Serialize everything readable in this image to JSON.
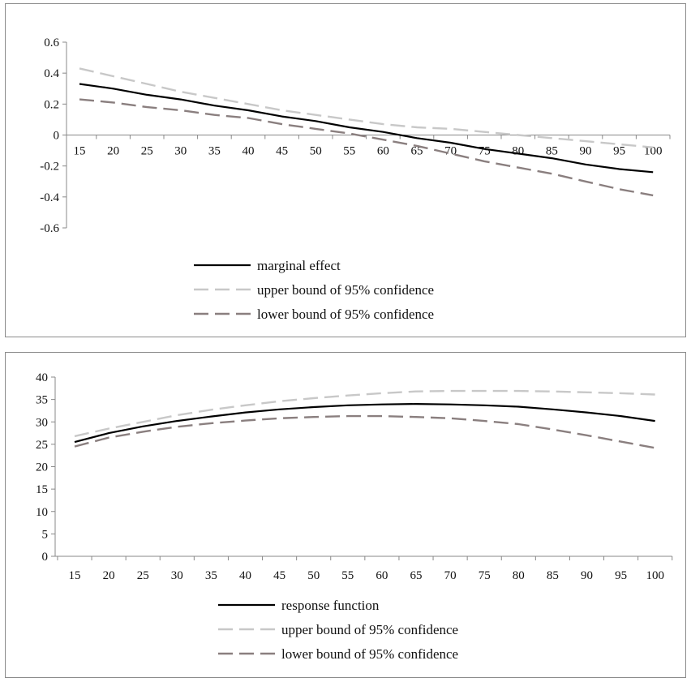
{
  "chart_data": [
    {
      "type": "line",
      "x": [
        15,
        20,
        25,
        30,
        35,
        40,
        45,
        50,
        55,
        60,
        65,
        70,
        75,
        80,
        85,
        90,
        95,
        100
      ],
      "x_tick_labels": [
        "15",
        "20",
        "25",
        "30",
        "35",
        "40",
        "45",
        "50",
        "55",
        "60",
        "65",
        "70",
        "75",
        "80",
        "85",
        "90",
        "95",
        "100"
      ],
      "y_tick_labels": [
        "0.6",
        "0.4",
        "0.2",
        "0",
        "-0.2",
        "-0.4",
        "-0.6"
      ],
      "y_ticks": [
        0.6,
        0.4,
        0.2,
        0,
        -0.2,
        -0.4,
        -0.6
      ],
      "ylim": [
        -0.6,
        0.6
      ],
      "grid": false,
      "legend_position": "bottom-center",
      "series": [
        {
          "name": "marginal effect",
          "color": "#000000",
          "style": "solid",
          "values": [
            0.33,
            0.3,
            0.26,
            0.23,
            0.19,
            0.16,
            0.12,
            0.09,
            0.05,
            0.02,
            -0.02,
            -0.05,
            -0.09,
            -0.12,
            -0.15,
            -0.19,
            -0.22,
            -0.24
          ]
        },
        {
          "name": "upper bound of 95% confidence",
          "color": "#c8c8c8",
          "style": "dashed",
          "values": [
            0.43,
            0.38,
            0.33,
            0.28,
            0.24,
            0.2,
            0.16,
            0.13,
            0.1,
            0.07,
            0.05,
            0.04,
            0.02,
            0.0,
            -0.02,
            -0.04,
            -0.06,
            -0.08
          ]
        },
        {
          "name": "lower bound of 95% confidence",
          "color": "#8a7f7f",
          "style": "dashed",
          "values": [
            0.23,
            0.21,
            0.18,
            0.16,
            0.13,
            0.11,
            0.07,
            0.04,
            0.01,
            -0.03,
            -0.07,
            -0.12,
            -0.17,
            -0.21,
            -0.25,
            -0.3,
            -0.35,
            -0.39
          ]
        }
      ]
    },
    {
      "type": "line",
      "x": [
        15,
        20,
        25,
        30,
        35,
        40,
        45,
        50,
        55,
        60,
        65,
        70,
        75,
        80,
        85,
        90,
        95,
        100
      ],
      "x_tick_labels": [
        "15",
        "20",
        "25",
        "30",
        "35",
        "40",
        "45",
        "50",
        "55",
        "60",
        "65",
        "70",
        "75",
        "80",
        "85",
        "90",
        "95",
        "100"
      ],
      "y_tick_labels": [
        "40",
        "35",
        "30",
        "25",
        "20",
        "15",
        "10",
        "5",
        "0"
      ],
      "y_ticks": [
        40,
        35,
        30,
        25,
        20,
        15,
        10,
        5,
        0
      ],
      "ylim": [
        0,
        40
      ],
      "grid": false,
      "legend_position": "bottom-center",
      "series": [
        {
          "name": "response function",
          "color": "#000000",
          "style": "solid",
          "values": [
            25.5,
            27.5,
            29.0,
            30.2,
            31.2,
            32.1,
            32.8,
            33.3,
            33.7,
            33.9,
            34.0,
            33.9,
            33.7,
            33.4,
            32.8,
            32.1,
            31.3,
            30.2
          ]
        },
        {
          "name": "upper bound of 95% confidence",
          "color": "#c8c8c8",
          "style": "dashed",
          "values": [
            26.8,
            28.5,
            30.0,
            31.5,
            32.7,
            33.7,
            34.6,
            35.3,
            35.9,
            36.4,
            36.8,
            36.9,
            36.9,
            36.9,
            36.8,
            36.6,
            36.4,
            36.1
          ]
        },
        {
          "name": "lower bound of 95% confidence",
          "color": "#8a7f7f",
          "style": "dashed",
          "values": [
            24.5,
            26.5,
            27.8,
            28.9,
            29.7,
            30.3,
            30.8,
            31.1,
            31.3,
            31.3,
            31.1,
            30.8,
            30.2,
            29.5,
            28.3,
            27.0,
            25.6,
            24.2
          ]
        }
      ]
    }
  ]
}
